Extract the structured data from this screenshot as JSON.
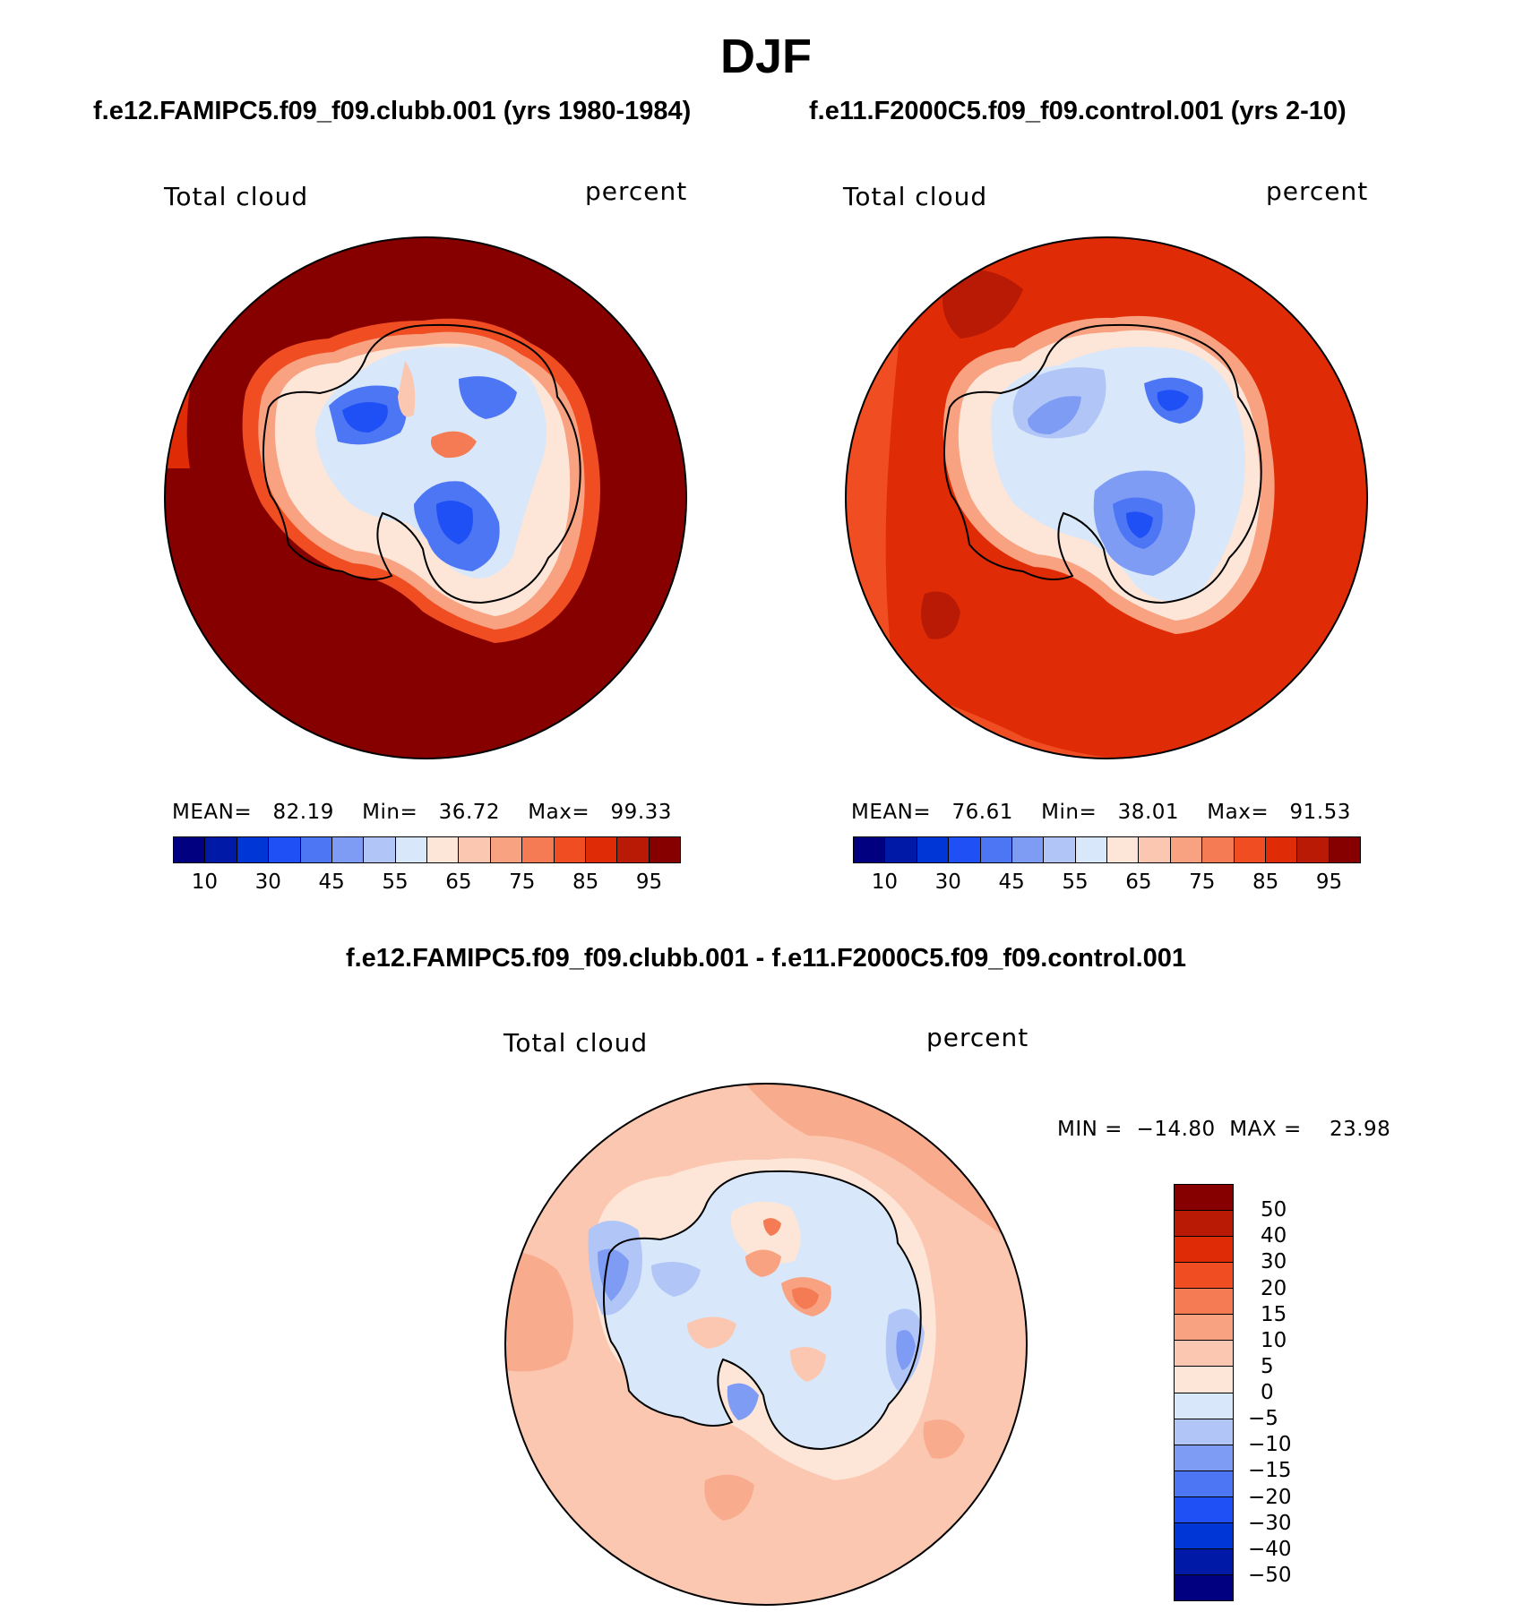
{
  "title": "DJF",
  "left_panel": {
    "case": "f.e12.FAMIPC5.f09_f09.clubb.001 (yrs 1980-1984)",
    "variable": "Total cloud",
    "units": "percent",
    "mean_label": "MEAN=",
    "mean_value": "82.19",
    "min_label": "Min=",
    "min_value": "36.72",
    "max_label": "Max=",
    "max_value": "99.33"
  },
  "right_panel": {
    "case": "f.e11.F2000C5.f09_f09.control.001 (yrs 2-10)",
    "variable": "Total cloud",
    "units": "percent",
    "mean_label": "MEAN=",
    "mean_value": "76.61",
    "min_label": "Min=",
    "min_value": "38.01",
    "max_label": "Max=",
    "max_value": "91.53"
  },
  "diff_panel": {
    "case": "f.e12.FAMIPC5.f09_f09.clubb.001 - f.e11.F2000C5.f09_f09.control.001",
    "variable": "Total cloud",
    "units": "percent",
    "min_label": "MIN =",
    "min_value": "−14.80",
    "max_label": "MAX =",
    "max_value": "23.98"
  },
  "abs_colorbar": {
    "levels": [
      5,
      10,
      20,
      30,
      40,
      45,
      50,
      55,
      60,
      65,
      70,
      75,
      80,
      85,
      90,
      95
    ],
    "tick_labels": [
      "10",
      "30",
      "45",
      "55",
      "65",
      "75",
      "85",
      "95"
    ],
    "colors": [
      "#000080",
      "#0019a6",
      "#0036d5",
      "#1f50f5",
      "#4d76f5",
      "#7f9cf5",
      "#b1c6f7",
      "#d8e7fa",
      "#fde6d8",
      "#fbc7b0",
      "#f8a282",
      "#f47b54",
      "#f04e22",
      "#e02c06",
      "#b81a05",
      "#870000"
    ]
  },
  "diff_colorbar": {
    "tick_labels": [
      "50",
      "40",
      "30",
      "20",
      "15",
      "10",
      "5",
      "0",
      "−5",
      "−10",
      "−15",
      "−20",
      "−30",
      "−40",
      "−50"
    ],
    "colors": [
      "#870000",
      "#b81a05",
      "#e02c06",
      "#f04e22",
      "#f47b54",
      "#f8a282",
      "#fbc7b0",
      "#fde6d8",
      "#d8e7fa",
      "#b1c6f7",
      "#7f9cf5",
      "#4d76f5",
      "#1f50f5",
      "#0036d5",
      "#0019a6",
      "#000080"
    ]
  },
  "map_colors": {
    "left_ocean": "#870000",
    "left_ring": "#e02c06",
    "right_ocean": "#e02c06",
    "right_outer": "#f04e22",
    "diff_ocean": "#fbc7b0",
    "diff_ring": "#fde6d8",
    "coast": "#000000"
  }
}
